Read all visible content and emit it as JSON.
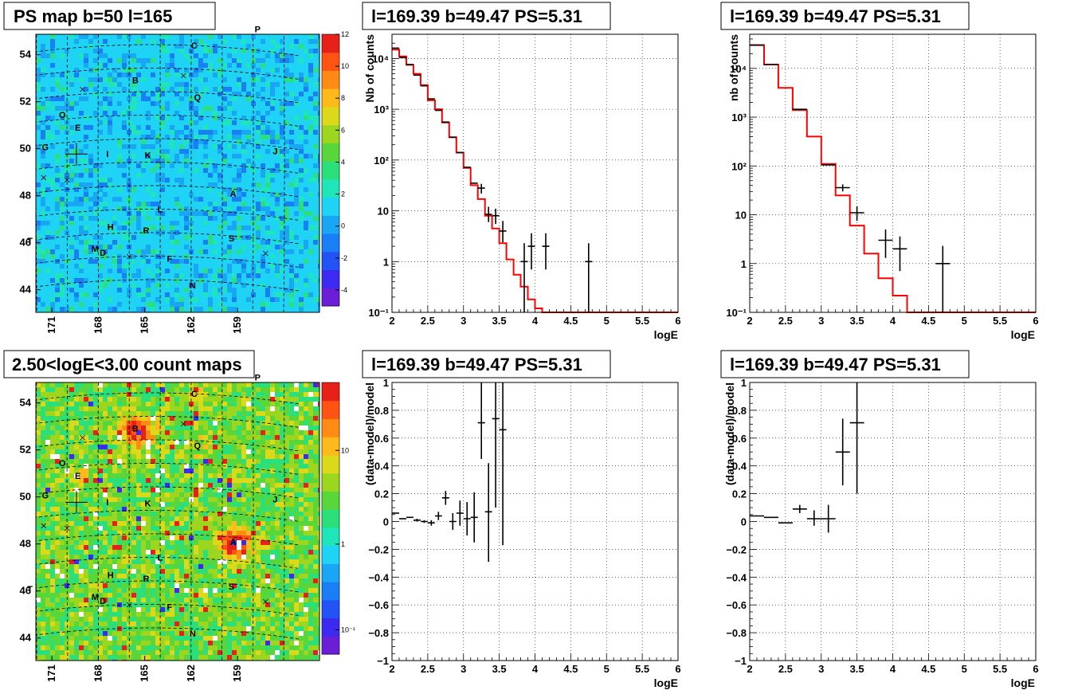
{
  "maps": [
    {
      "title": "PS map b=50 l=165",
      "colorbar": {
        "type": "linear",
        "range": [
          -5,
          12
        ],
        "ticks": [
          "-4",
          "-2",
          "0",
          "2",
          "4",
          "6",
          "8",
          "10",
          "12"
        ]
      },
      "x_ticks": [
        "171",
        "168",
        "165",
        "162",
        "159"
      ],
      "y_ticks": [
        "54",
        "52",
        "50",
        "48",
        "46",
        "44"
      ],
      "hotspots": []
    },
    {
      "title": "2.50<logE<3.00 count maps",
      "colorbar": {
        "type": "log",
        "ticks": [
          "10",
          "1",
          "10⁻¹"
        ]
      },
      "x_ticks": [
        "171",
        "168",
        "165",
        "162",
        "159"
      ],
      "y_ticks": [
        "54",
        "52",
        "50",
        "48",
        "46",
        "44"
      ],
      "hotspots": [
        "B",
        "A",
        "C",
        "E",
        "Q"
      ]
    }
  ],
  "sources": [
    {
      "label": "P",
      "gl": 157.7,
      "gb": 54.9
    },
    {
      "label": "C",
      "gl": 161.8,
      "gb": 54.0
    },
    {
      "label": "B",
      "gl": 165.6,
      "gb": 52.5
    },
    {
      "label": "Q",
      "gl": 161.6,
      "gb": 51.8
    },
    {
      "label": "O",
      "gl": 170.3,
      "gb": 51.2
    },
    {
      "label": "E",
      "gl": 169.3,
      "gb": 50.6
    },
    {
      "label": "G",
      "gl": 171.4,
      "gb": 49.9
    },
    {
      "label": "J",
      "gl": 156.6,
      "gb": 49.8
    },
    {
      "label": "I",
      "gl": 167.4,
      "gb": 49.4
    },
    {
      "label": "K",
      "gl": 164.8,
      "gb": 49.3
    },
    {
      "label": "A",
      "gl": 159.3,
      "gb": 47.8
    },
    {
      "label": "L",
      "gl": 164.0,
      "gb": 47.0
    },
    {
      "label": "H",
      "gl": 167.2,
      "gb": 46.3
    },
    {
      "label": "R",
      "gl": 164.9,
      "gb": 46.1
    },
    {
      "label": "T",
      "gl": 172.4,
      "gb": 46.0
    },
    {
      "label": "S",
      "gl": 159.4,
      "gb": 45.9
    },
    {
      "label": "M",
      "gl": 168.2,
      "gb": 45.4
    },
    {
      "label": "D",
      "gl": 167.7,
      "gb": 45.2
    },
    {
      "label": "F",
      "gl": 163.4,
      "gb": 44.9
    },
    {
      "label": "N",
      "gl": 161.9,
      "gb": 43.8
    }
  ],
  "crosses": [
    {
      "gl": 169.0,
      "gb": 52.2
    },
    {
      "gl": 162.5,
      "gb": 52.7
    },
    {
      "gl": 171.5,
      "gb": 48.6
    },
    {
      "gl": 170.0,
      "gb": 48.4
    },
    {
      "gl": 166.0,
      "gb": 45.0
    },
    {
      "gl": 157.2,
      "gb": 45.4
    }
  ],
  "target": {
    "gl": 169.39,
    "gb": 49.47
  },
  "chart_data": [
    {
      "type": "line",
      "title": "l=169.39 b=49.47 PS=5.31",
      "xlabel": "logE",
      "ylabel": "Nb of counts",
      "yscale": "log",
      "xlim": [
        2,
        6
      ],
      "ylim": [
        0.1,
        30000
      ],
      "grid": true,
      "x_ticks": [
        "2",
        "2.5",
        "3",
        "3.5",
        "4",
        "4.5",
        "5",
        "5.5",
        "6"
      ],
      "y_ticks": [
        {
          "v": 0.1,
          "t": "10⁻¹"
        },
        {
          "v": 1,
          "t": "1"
        },
        {
          "v": 10,
          "t": "10"
        },
        {
          "v": 100,
          "t": "10²"
        },
        {
          "v": 1000,
          "t": "10³"
        },
        {
          "v": 10000,
          "t": "10⁴"
        }
      ],
      "model": {
        "edges": [
          2,
          2.1,
          2.2,
          2.3,
          2.4,
          2.5,
          2.6,
          2.7,
          2.8,
          2.9,
          3.0,
          3.1,
          3.2,
          3.3,
          3.4,
          3.5,
          3.6,
          3.7,
          3.8,
          3.9,
          4.0,
          4.1,
          4.2,
          6.0
        ],
        "values": [
          15000,
          11000,
          7500,
          5000,
          3000,
          1500,
          1000,
          550,
          280,
          140,
          70,
          32,
          17,
          8,
          4.5,
          2.3,
          1.1,
          0.55,
          0.32,
          0.18,
          0.12,
          0.1,
          0.1
        ]
      },
      "data": [
        {
          "x": 2.05,
          "y": 16000
        },
        {
          "x": 2.15,
          "y": 10500
        },
        {
          "x": 2.25,
          "y": 7600
        },
        {
          "x": 2.35,
          "y": 4700
        },
        {
          "x": 2.45,
          "y": 2900
        },
        {
          "x": 2.55,
          "y": 1600
        },
        {
          "x": 2.65,
          "y": 950
        },
        {
          "x": 2.75,
          "y": 560
        },
        {
          "x": 2.85,
          "y": 280
        },
        {
          "x": 2.95,
          "y": 140
        },
        {
          "x": 3.05,
          "y": 72
        },
        {
          "x": 3.15,
          "y": 35
        },
        {
          "x": 3.25,
          "y": 28,
          "lo": 22,
          "hi": 34
        },
        {
          "x": 3.35,
          "y": 8.5,
          "lo": 6,
          "hi": 12
        },
        {
          "x": 3.45,
          "y": 8,
          "lo": 5.5,
          "hi": 11
        },
        {
          "x": 3.55,
          "y": 4,
          "lo": 2.4,
          "hi": 6.3
        },
        {
          "x": 3.85,
          "y": 1,
          "lo": 0.1,
          "hi": 2.3
        },
        {
          "x": 3.95,
          "y": 2,
          "lo": 0.7,
          "hi": 3.6
        },
        {
          "x": 4.15,
          "y": 2,
          "lo": 0.7,
          "hi": 3.6
        },
        {
          "x": 4.75,
          "y": 1,
          "lo": 0.1,
          "hi": 2.3
        }
      ]
    },
    {
      "type": "line",
      "title": "l=169.39 b=49.47 PS=5.31",
      "xlabel": "logE",
      "ylabel": "nb of counts",
      "yscale": "log",
      "xlim": [
        2,
        6
      ],
      "ylim": [
        0.1,
        50000
      ],
      "grid": true,
      "x_ticks": [
        "2",
        "2.5",
        "3",
        "3.5",
        "4",
        "4.5",
        "5",
        "5.5",
        "6"
      ],
      "y_ticks": [
        {
          "v": 0.1,
          "t": "10⁻¹"
        },
        {
          "v": 1,
          "t": "1"
        },
        {
          "v": 10,
          "t": "10"
        },
        {
          "v": 100,
          "t": "10²"
        },
        {
          "v": 1000,
          "t": "10³"
        },
        {
          "v": 10000,
          "t": "10⁴"
        }
      ],
      "model": {
        "edges": [
          2,
          2.2,
          2.4,
          2.6,
          2.8,
          3.0,
          3.2,
          3.4,
          3.6,
          3.8,
          4.0,
          4.2,
          6.0
        ],
        "values": [
          30000,
          12000,
          4000,
          1400,
          400,
          110,
          25,
          6,
          1.6,
          0.5,
          0.22,
          0.1
        ]
      },
      "data": [
        {
          "x": 2.1,
          "y": 30000
        },
        {
          "x": 2.3,
          "y": 12000
        },
        {
          "x": 2.7,
          "y": 1450
        },
        {
          "x": 3.1,
          "y": 105
        },
        {
          "x": 3.3,
          "y": 36,
          "lo": 30,
          "hi": 42
        },
        {
          "x": 3.5,
          "y": 11,
          "lo": 7.5,
          "hi": 15
        },
        {
          "x": 3.9,
          "y": 3,
          "lo": 1.3,
          "hi": 5
        },
        {
          "x": 4.1,
          "y": 2,
          "lo": 0.7,
          "hi": 3.6
        },
        {
          "x": 4.7,
          "y": 1,
          "lo": 0.1,
          "hi": 2.3
        }
      ]
    },
    {
      "type": "scatter",
      "title": "l=169.39 b=49.47 PS=5.31",
      "xlabel": "logE",
      "ylabel": "(data-model)/model",
      "yscale": "linear",
      "xlim": [
        2,
        6
      ],
      "ylim": [
        -1,
        1
      ],
      "grid": true,
      "x_ticks": [
        "2",
        "2.5",
        "3",
        "3.5",
        "4",
        "4.5",
        "5",
        "5.5",
        "6"
      ],
      "y_ticks": [
        {
          "v": -1,
          "t": "−1"
        },
        {
          "v": -0.8,
          "t": "−0.8"
        },
        {
          "v": -0.6,
          "t": "−0.6"
        },
        {
          "v": -0.4,
          "t": "−0.4"
        },
        {
          "v": -0.2,
          "t": "−0.2"
        },
        {
          "v": 0,
          "t": "0"
        },
        {
          "v": 0.2,
          "t": "0.2"
        },
        {
          "v": 0.4,
          "t": "0.4"
        },
        {
          "v": 0.6,
          "t": "0.6"
        },
        {
          "v": 0.8,
          "t": "0.8"
        },
        {
          "v": 1,
          "t": "1"
        }
      ],
      "data": [
        {
          "x": 2.05,
          "y": 0.06,
          "hw": 0.05,
          "lo": 0.06,
          "hi": 0.06
        },
        {
          "x": 2.15,
          "y": 0.02,
          "hw": 0.05,
          "lo": 0.02,
          "hi": 0.02
        },
        {
          "x": 2.25,
          "y": 0.03,
          "hw": 0.05,
          "lo": 0.03,
          "hi": 0.03
        },
        {
          "x": 2.35,
          "y": 0.01,
          "hw": 0.05,
          "lo": 0.0,
          "hi": 0.02
        },
        {
          "x": 2.45,
          "y": 0.0,
          "hw": 0.05,
          "lo": -0.01,
          "hi": 0.01
        },
        {
          "x": 2.55,
          "y": -0.01,
          "hw": 0.05,
          "lo": -0.03,
          "hi": 0.01
        },
        {
          "x": 2.65,
          "y": 0.04,
          "hw": 0.05,
          "lo": 0.01,
          "hi": 0.07
        },
        {
          "x": 2.75,
          "y": 0.17,
          "hw": 0.05,
          "lo": 0.12,
          "hi": 0.22
        },
        {
          "x": 2.85,
          "y": 0.0,
          "hw": 0.05,
          "lo": -0.06,
          "hi": 0.06
        },
        {
          "x": 2.95,
          "y": 0.06,
          "hw": 0.05,
          "lo": -0.03,
          "hi": 0.15
        },
        {
          "x": 3.05,
          "y": 0.02,
          "hw": 0.05,
          "lo": -0.1,
          "hi": 0.14
        },
        {
          "x": 3.15,
          "y": 0.03,
          "hw": 0.05,
          "lo": -0.15,
          "hi": 0.21
        },
        {
          "x": 3.25,
          "y": 0.71,
          "hw": 0.05,
          "lo": 0.45,
          "hi": 1.0
        },
        {
          "x": 3.35,
          "y": 0.07,
          "hw": 0.05,
          "lo": -0.29,
          "hi": 0.42
        },
        {
          "x": 3.45,
          "y": 0.74,
          "hw": 0.05,
          "lo": 0.1,
          "hi": 1.0
        },
        {
          "x": 3.55,
          "y": 0.66,
          "hw": 0.05,
          "lo": -0.17,
          "hi": 1.0
        }
      ]
    },
    {
      "type": "scatter",
      "title": "l=169.39 b=49.47 PS=5.31",
      "xlabel": "logE",
      "ylabel": "(data-model)/model",
      "yscale": "linear",
      "xlim": [
        2,
        6
      ],
      "ylim": [
        -1,
        1
      ],
      "grid": true,
      "x_ticks": [
        "2",
        "2.5",
        "3",
        "3.5",
        "4",
        "4.5",
        "5",
        "5.5",
        "6"
      ],
      "y_ticks": [
        {
          "v": -1,
          "t": "−1"
        },
        {
          "v": -0.8,
          "t": "−0.8"
        },
        {
          "v": -0.6,
          "t": "−0.6"
        },
        {
          "v": -0.4,
          "t": "−0.4"
        },
        {
          "v": -0.2,
          "t": "−0.2"
        },
        {
          "v": 0,
          "t": "0"
        },
        {
          "v": 0.2,
          "t": "0.2"
        },
        {
          "v": 0.4,
          "t": "0.4"
        },
        {
          "v": 0.6,
          "t": "0.6"
        },
        {
          "v": 0.8,
          "t": "0.8"
        },
        {
          "v": 1,
          "t": "1"
        }
      ],
      "data": [
        {
          "x": 2.1,
          "y": 0.04,
          "hw": 0.1,
          "lo": 0.04,
          "hi": 0.04
        },
        {
          "x": 2.3,
          "y": 0.03,
          "hw": 0.1,
          "lo": 0.03,
          "hi": 0.03
        },
        {
          "x": 2.5,
          "y": -0.01,
          "hw": 0.1,
          "lo": -0.01,
          "hi": -0.01
        },
        {
          "x": 2.7,
          "y": 0.09,
          "hw": 0.1,
          "lo": 0.06,
          "hi": 0.12
        },
        {
          "x": 2.9,
          "y": 0.02,
          "hw": 0.1,
          "lo": -0.03,
          "hi": 0.08
        },
        {
          "x": 3.1,
          "y": 0.02,
          "hw": 0.1,
          "lo": -0.08,
          "hi": 0.12
        },
        {
          "x": 3.3,
          "y": 0.5,
          "hw": 0.1,
          "lo": 0.26,
          "hi": 0.74
        },
        {
          "x": 3.5,
          "y": 0.71,
          "hw": 0.1,
          "lo": 0.2,
          "hi": 1.0
        }
      ]
    }
  ]
}
